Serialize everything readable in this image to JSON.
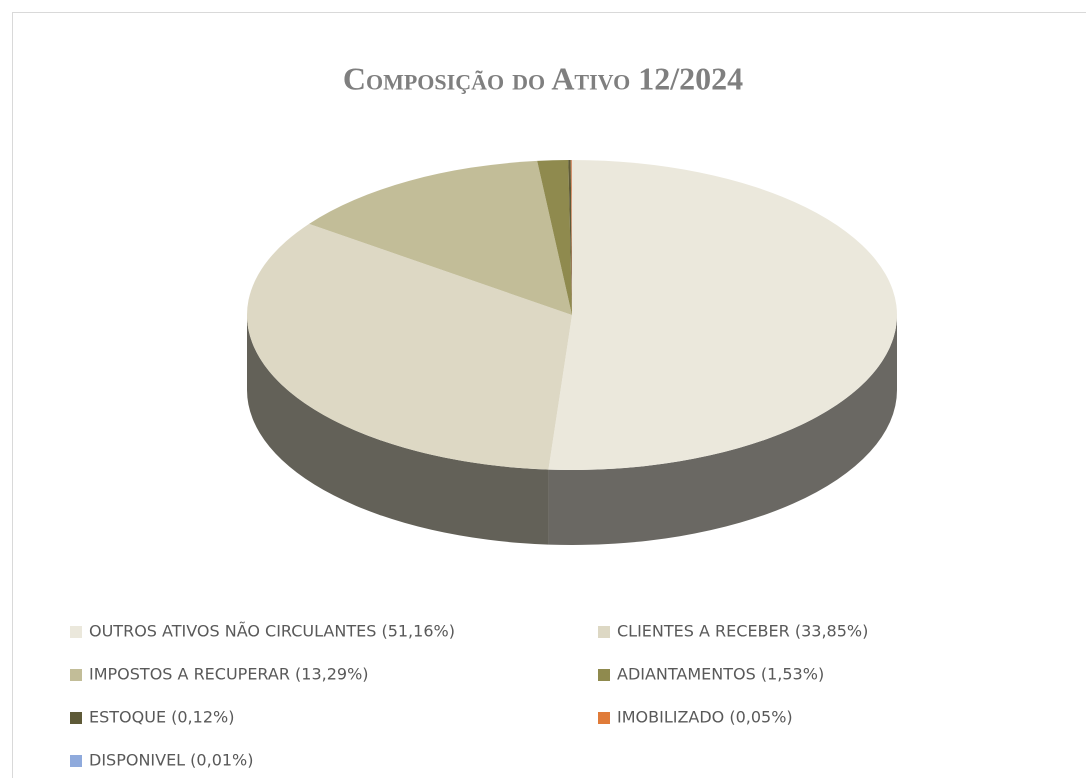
{
  "chart_data": {
    "type": "pie3d",
    "title": "Composição do Ativo 12/2024",
    "categories": [
      "OUTROS ATIVOS NÃO CIRCULANTES (51,16%)",
      "CLIENTES A RECEBER (33,85%)",
      "IMPOSTOS A RECUPERAR (13,29%)",
      "ADIANTAMENTOS (1,53%)",
      "ESTOQUE (0,12%)",
      "IMOBILIZADO (0,05%)",
      "DISPONIVEL (0,01%)"
    ],
    "values": [
      51.16,
      33.85,
      13.29,
      1.53,
      0.12,
      0.05,
      0.01
    ],
    "colors": [
      "#ebe8dc",
      "#ddd8c4",
      "#c2bd98",
      "#8f8a4e",
      "#5e5a38",
      "#e07b39",
      "#8faadc"
    ],
    "legend": "bottom"
  }
}
